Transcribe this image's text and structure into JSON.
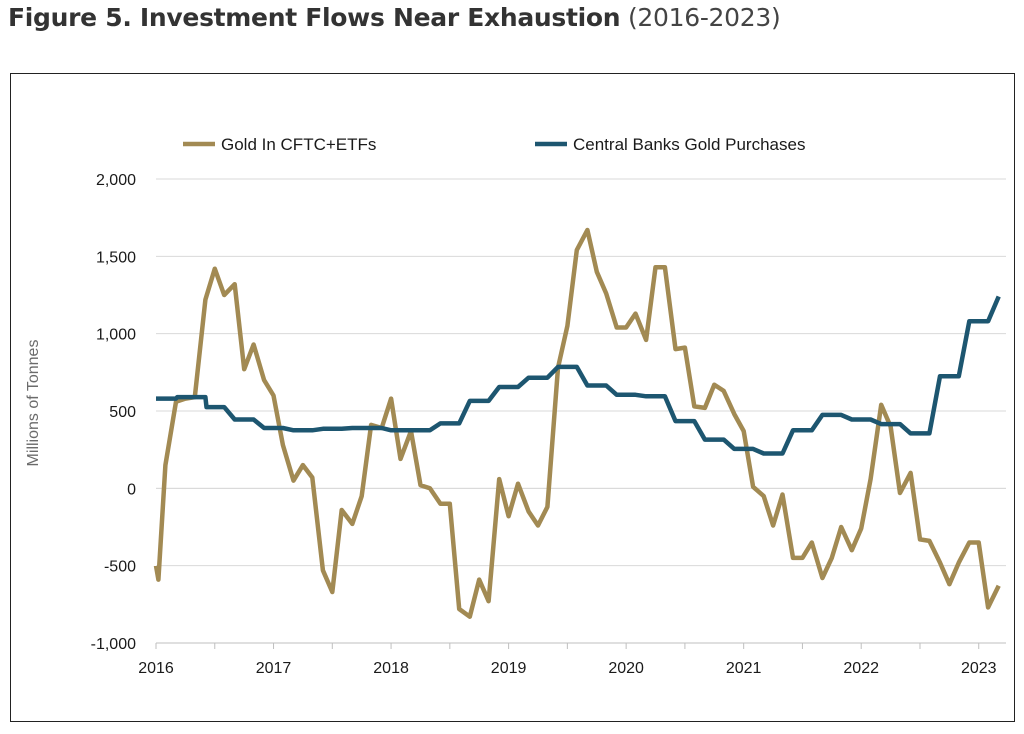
{
  "figure": {
    "title_bold": "Figure 5. Investment Flows Near Exhaustion",
    "title_light": " (2016-2023)"
  },
  "chart_data": {
    "type": "line",
    "title": "",
    "xlabel": "",
    "ylabel": "Millions of Tonnes",
    "ylim": [
      -1000,
      2000
    ],
    "yticks": [
      -1000,
      -500,
      0,
      500,
      1000,
      1500,
      2000
    ],
    "ytick_labels": [
      "-1,000",
      "-500",
      "0",
      "500",
      "1,000",
      "1,500",
      "2,000"
    ],
    "xlim": [
      2016,
      2023.3
    ],
    "xticks": [
      2016,
      2017,
      2018,
      2019,
      2020,
      2021,
      2022,
      2023
    ],
    "xtick_labels": [
      "2016",
      "2017",
      "2018",
      "2019",
      "2020",
      "2021",
      "2022",
      "2023"
    ],
    "grid": "horizontal",
    "legend_position": "top",
    "series": [
      {
        "name": "Gold In CFTC+ETFs",
        "color": "#a28a53",
        "points": [
          [
            2016.0,
            -500
          ],
          [
            2016.02,
            -590
          ],
          [
            2016.08,
            150
          ],
          [
            2016.17,
            560
          ],
          [
            2016.25,
            580
          ],
          [
            2016.33,
            590
          ],
          [
            2016.42,
            1220
          ],
          [
            2016.5,
            1420
          ],
          [
            2016.58,
            1250
          ],
          [
            2016.67,
            1320
          ],
          [
            2016.75,
            770
          ],
          [
            2016.83,
            930
          ],
          [
            2016.92,
            700
          ],
          [
            2017.0,
            600
          ],
          [
            2017.08,
            280
          ],
          [
            2017.17,
            50
          ],
          [
            2017.25,
            150
          ],
          [
            2017.33,
            70
          ],
          [
            2017.42,
            -530
          ],
          [
            2017.5,
            -670
          ],
          [
            2017.58,
            -140
          ],
          [
            2017.67,
            -230
          ],
          [
            2017.75,
            -50
          ],
          [
            2017.83,
            410
          ],
          [
            2017.92,
            390
          ],
          [
            2018.0,
            580
          ],
          [
            2018.08,
            190
          ],
          [
            2018.17,
            370
          ],
          [
            2018.25,
            20
          ],
          [
            2018.33,
            0
          ],
          [
            2018.42,
            -100
          ],
          [
            2018.5,
            -100
          ],
          [
            2018.58,
            -780
          ],
          [
            2018.67,
            -830
          ],
          [
            2018.75,
            -590
          ],
          [
            2018.83,
            -730
          ],
          [
            2018.92,
            60
          ],
          [
            2019.0,
            -180
          ],
          [
            2019.08,
            30
          ],
          [
            2019.17,
            -150
          ],
          [
            2019.25,
            -240
          ],
          [
            2019.33,
            -120
          ],
          [
            2019.42,
            780
          ],
          [
            2019.5,
            1050
          ],
          [
            2019.58,
            1540
          ],
          [
            2019.67,
            1670
          ],
          [
            2019.75,
            1400
          ],
          [
            2019.83,
            1260
          ],
          [
            2019.92,
            1040
          ],
          [
            2020.0,
            1040
          ],
          [
            2020.08,
            1130
          ],
          [
            2020.17,
            960
          ],
          [
            2020.25,
            1430
          ],
          [
            2020.33,
            1430
          ],
          [
            2020.42,
            900
          ],
          [
            2020.5,
            910
          ],
          [
            2020.58,
            530
          ],
          [
            2020.67,
            520
          ],
          [
            2020.75,
            670
          ],
          [
            2020.83,
            630
          ],
          [
            2020.92,
            480
          ],
          [
            2021.0,
            370
          ],
          [
            2021.08,
            10
          ],
          [
            2021.17,
            -50
          ],
          [
            2021.25,
            -240
          ],
          [
            2021.33,
            -40
          ],
          [
            2021.42,
            -450
          ],
          [
            2021.5,
            -450
          ],
          [
            2021.58,
            -350
          ],
          [
            2021.67,
            -580
          ],
          [
            2021.75,
            -450
          ],
          [
            2021.83,
            -250
          ],
          [
            2021.92,
            -400
          ],
          [
            2022.0,
            -260
          ],
          [
            2022.08,
            60
          ],
          [
            2022.17,
            540
          ],
          [
            2022.25,
            400
          ],
          [
            2022.33,
            -30
          ],
          [
            2022.42,
            100
          ],
          [
            2022.5,
            -330
          ],
          [
            2022.58,
            -340
          ],
          [
            2022.67,
            -480
          ],
          [
            2022.75,
            -620
          ],
          [
            2022.83,
            -480
          ],
          [
            2022.92,
            -350
          ],
          [
            2023.0,
            -350
          ],
          [
            2023.08,
            -770
          ],
          [
            2023.17,
            -630
          ]
        ]
      },
      {
        "name": "Central Banks Gold Purchases",
        "color": "#1d5670",
        "points": [
          [
            2016.0,
            580
          ],
          [
            2016.17,
            580
          ],
          [
            2016.18,
            590
          ],
          [
            2016.42,
            590
          ],
          [
            2016.43,
            525
          ],
          [
            2016.58,
            525
          ],
          [
            2016.67,
            445
          ],
          [
            2016.83,
            445
          ],
          [
            2016.92,
            390
          ],
          [
            2017.08,
            390
          ],
          [
            2017.17,
            375
          ],
          [
            2017.33,
            375
          ],
          [
            2017.42,
            385
          ],
          [
            2017.58,
            385
          ],
          [
            2017.67,
            390
          ],
          [
            2017.92,
            390
          ],
          [
            2018.0,
            375
          ],
          [
            2018.33,
            375
          ],
          [
            2018.42,
            420
          ],
          [
            2018.58,
            420
          ],
          [
            2018.67,
            565
          ],
          [
            2018.83,
            565
          ],
          [
            2018.92,
            655
          ],
          [
            2019.08,
            655
          ],
          [
            2019.17,
            715
          ],
          [
            2019.33,
            715
          ],
          [
            2019.42,
            785
          ],
          [
            2019.58,
            785
          ],
          [
            2019.67,
            665
          ],
          [
            2019.83,
            665
          ],
          [
            2019.92,
            605
          ],
          [
            2020.08,
            605
          ],
          [
            2020.17,
            595
          ],
          [
            2020.33,
            595
          ],
          [
            2020.42,
            435
          ],
          [
            2020.58,
            435
          ],
          [
            2020.67,
            315
          ],
          [
            2020.83,
            315
          ],
          [
            2020.92,
            255
          ],
          [
            2021.08,
            255
          ],
          [
            2021.17,
            225
          ],
          [
            2021.33,
            225
          ],
          [
            2021.42,
            375
          ],
          [
            2021.58,
            375
          ],
          [
            2021.67,
            475
          ],
          [
            2021.83,
            475
          ],
          [
            2021.92,
            445
          ],
          [
            2022.08,
            445
          ],
          [
            2022.17,
            415
          ],
          [
            2022.33,
            415
          ],
          [
            2022.42,
            355
          ],
          [
            2022.58,
            355
          ],
          [
            2022.67,
            725
          ],
          [
            2022.83,
            725
          ],
          [
            2022.92,
            1080
          ],
          [
            2023.08,
            1080
          ],
          [
            2023.17,
            1240
          ]
        ]
      }
    ]
  }
}
